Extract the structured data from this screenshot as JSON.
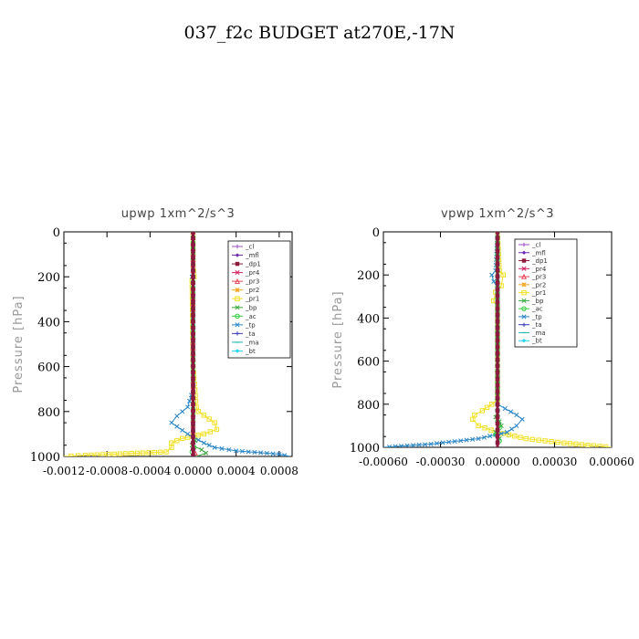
{
  "title": "037_f2c  BUDGET at270E,-17N",
  "legend_entries": [
    {
      "name": "_cl",
      "color": "#9a4fc7",
      "marker": "+"
    },
    {
      "name": "_mfl",
      "color": "#6d2bb0",
      "marker": "diamond"
    },
    {
      "name": "_dp1",
      "color": "#8b1a3c",
      "marker": "square"
    },
    {
      "name": "_pr4",
      "color": "#d02060",
      "marker": "x"
    },
    {
      "name": "_pr3",
      "color": "#e8455a",
      "marker": "triangle"
    },
    {
      "name": "_pr2",
      "color": "#f5a623",
      "marker": "star"
    },
    {
      "name": "_pr1",
      "color": "#f2e022",
      "marker": "square-open"
    },
    {
      "name": "_bp",
      "color": "#3aa83a",
      "marker": "x"
    },
    {
      "name": "_ac",
      "color": "#2fcc40",
      "marker": "circle"
    },
    {
      "name": "_tp",
      "color": "#2a86c7",
      "marker": "x"
    },
    {
      "name": "_ta",
      "color": "#3a3ab8",
      "marker": "+"
    },
    {
      "name": "_ma",
      "color": "#1fb8b0",
      "marker": "dash"
    },
    {
      "name": "_bt",
      "color": "#22d3f0",
      "marker": "diamond"
    }
  ],
  "chart_data": [
    {
      "type": "line",
      "title": "upwp   1xm^2/s^3",
      "ylabel": "Pressure  [hPa]",
      "ylim": [
        1000,
        0
      ],
      "y_ticks": [
        0,
        200,
        400,
        600,
        800,
        1000
      ],
      "y_tick_labels": [
        "0",
        "200",
        "400",
        "600",
        "800",
        "1000"
      ],
      "xlim": [
        -0.0012,
        0.00092
      ],
      "x_ticks": [
        -0.0012,
        -0.0008,
        -0.0004,
        0.0,
        0.0004,
        0.0008
      ],
      "x_tick_labels": [
        "-0.0012",
        "-0.0008",
        "-0.0004",
        "0.0000",
        "0.0004",
        "0.0008"
      ],
      "legend_position": "top-right",
      "series": [
        {
          "name": "_pr1",
          "x": [
            0,
            0,
            1e-05,
            -1e-05,
            0,
            3e-05,
            5e-05,
            0.0002,
            0.00022,
            0.0001,
            -0.0001,
            -0.0002,
            -0.0002,
            -0.00025,
            -0.001,
            -0.0012
          ],
          "y": [
            0,
            150,
            200,
            220,
            600,
            780,
            800,
            850,
            880,
            900,
            920,
            940,
            960,
            980,
            995,
            1000
          ]
        },
        {
          "name": "_tp",
          "x": [
            0,
            0,
            -1e-05,
            0,
            0,
            -5e-05,
            -0.00015,
            -0.0002,
            -5e-05,
            0.0001,
            0.0002,
            0.0004,
            0.0008,
            0.0009
          ],
          "y": [
            0,
            190,
            200,
            215,
            700,
            780,
            820,
            850,
            900,
            940,
            960,
            975,
            990,
            1000
          ]
        },
        {
          "name": "_bp",
          "x": [
            0,
            0,
            2e-05,
            -1e-05,
            8e-05,
            0.00012,
            3e-05
          ],
          "y": [
            0,
            900,
            930,
            950,
            970,
            985,
            1000
          ]
        },
        {
          "name": "_ac",
          "x": [
            0,
            0,
            1e-05,
            -1e-05,
            0
          ],
          "y": [
            0,
            940,
            960,
            980,
            1000
          ]
        },
        {
          "name": "_pr3",
          "x": [
            0,
            0,
            2e-05,
            0
          ],
          "y": [
            0,
            960,
            985,
            1000
          ]
        },
        {
          "name": "_mfl",
          "x": [
            0,
            0
          ],
          "y": [
            0,
            1000
          ]
        },
        {
          "name": "_dp1",
          "x": [
            0,
            0
          ],
          "y": [
            0,
            1000
          ]
        }
      ]
    },
    {
      "type": "line",
      "title": "vpwp   1xm^2/s^3",
      "ylabel": "Pressure  [hPa]",
      "ylim": [
        1000,
        0
      ],
      "y_ticks": [
        0,
        200,
        400,
        600,
        800,
        1000
      ],
      "y_tick_labels": [
        "0",
        "200",
        "400",
        "600",
        "800",
        "1000"
      ],
      "xlim": [
        -0.0006,
        0.0006
      ],
      "x_ticks": [
        -0.0006,
        -0.0003,
        0.0,
        0.0003,
        0.0006
      ],
      "x_tick_labels": [
        "-0.00060",
        "-0.00030",
        "0.00000",
        "0.00030",
        "0.00060"
      ],
      "legend_position": "top-right",
      "series": [
        {
          "name": "_pr1",
          "x": [
            0,
            1e-05,
            3e-05,
            2e-05,
            -1e-05,
            -2e-05,
            0,
            0,
            -3e-05,
            -8e-05,
            -0.00012,
            -0.00013,
            -0.0001,
            0,
            0.00015,
            0.00035,
            0.0006
          ],
          "y": [
            0,
            180,
            200,
            250,
            280,
            320,
            350,
            780,
            800,
            830,
            850,
            870,
            900,
            930,
            960,
            980,
            1000
          ]
        },
        {
          "name": "_tp",
          "x": [
            0,
            -1e-05,
            -3e-05,
            -2e-05,
            0,
            0,
            4e-05,
            0.0001,
            0.00013,
            0.0001,
            5e-05,
            -0.0001,
            -0.00035,
            -0.0006
          ],
          "y": [
            0,
            180,
            200,
            230,
            260,
            800,
            820,
            850,
            870,
            900,
            930,
            960,
            985,
            1000
          ]
        },
        {
          "name": "_bp",
          "x": [
            0,
            0,
            -1e-05,
            1e-05,
            2e-05,
            -1e-05,
            1e-05,
            0
          ],
          "y": [
            0,
            840,
            860,
            880,
            900,
            930,
            960,
            1000
          ]
        },
        {
          "name": "_ac",
          "x": [
            0,
            0,
            1e-05,
            -1e-05,
            1e-05,
            0
          ],
          "y": [
            0,
            880,
            910,
            940,
            970,
            1000
          ]
        },
        {
          "name": "_mfl",
          "x": [
            0,
            0
          ],
          "y": [
            0,
            1000
          ]
        },
        {
          "name": "_dp1",
          "x": [
            0,
            0
          ],
          "y": [
            0,
            1000
          ]
        }
      ]
    }
  ]
}
